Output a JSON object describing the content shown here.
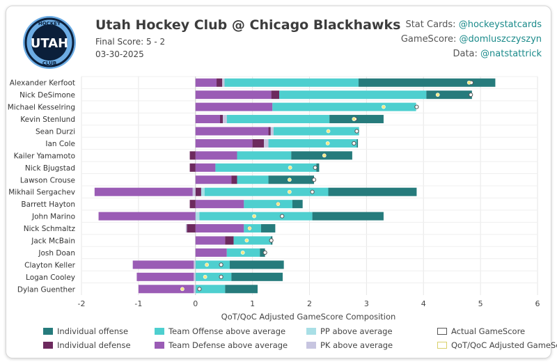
{
  "header": {
    "title": "Utah Hockey Club @ Chicago Blackhawks",
    "final_score": "Final Score: 5 - 2",
    "date": "03-30-2025",
    "logo_text_top": "HOCKEY",
    "logo_text_main": "UTAH",
    "logo_text_bottom": "CLUB"
  },
  "credits": [
    {
      "label": "Stat Cards: ",
      "handle": "@hockeystatcards"
    },
    {
      "label": "GameScore: ",
      "handle": "@domluszczyszyn"
    },
    {
      "label": "Data: ",
      "handle": "@natstattrick"
    }
  ],
  "colors": {
    "individual_offense": "#267b7c",
    "individual_defense": "#6d2a5e",
    "team_offense": "#4ecfcf",
    "team_defense": "#9a5cb5",
    "pp": "#a9dfe6",
    "pk": "#c7c5e0",
    "actual_marker": "#ffffff",
    "adjusted_marker": "#f2ea86"
  },
  "chart_data": {
    "type": "bar",
    "orientation": "horizontal-stacked",
    "xlabel": "QoT/QoC Adjusted GameScore Composition",
    "xlim": [
      -2,
      6
    ],
    "xticks": [
      -2,
      -1,
      0,
      1,
      2,
      3,
      4,
      5,
      6
    ],
    "grid": true,
    "legend_position": "bottom",
    "legend": [
      {
        "key": "individual_offense",
        "label": "Individual offense"
      },
      {
        "key": "team_offense",
        "label": "Team Offense above average"
      },
      {
        "key": "pp",
        "label": "PP above average"
      },
      {
        "key": "actual",
        "label": "Actual GameScore"
      },
      {
        "key": "individual_defense",
        "label": "Individual defense"
      },
      {
        "key": "team_defense",
        "label": "Team Defense above average"
      },
      {
        "key": "pk",
        "label": "PK above average"
      },
      {
        "key": "adjusted",
        "label": "QoT/QoC Adjusted GameScore"
      }
    ],
    "players": [
      {
        "name": "Alexander Kerfoot",
        "team_defense": 0.37,
        "individual_defense": 0.1,
        "pk": 0.04,
        "pp": 0.0,
        "team_offense": 2.35,
        "individual_offense": 2.4,
        "actual": 4.84,
        "adjusted": 4.8
      },
      {
        "name": "Nick DeSimone",
        "team_defense": 1.33,
        "individual_defense": 0.14,
        "pk": 0.0,
        "pp": 0.0,
        "team_offense": 2.58,
        "individual_offense": 0.8,
        "actual": 4.83,
        "adjusted": 4.25
      },
      {
        "name": "Michael Kesselring",
        "team_defense": 1.35,
        "individual_defense": 0.0,
        "pk": 0.0,
        "pp": 0.0,
        "team_offense": 2.52,
        "individual_offense": 0.0,
        "actual": 3.88,
        "adjusted": 3.3
      },
      {
        "name": "Kevin Stenlund",
        "team_defense": 0.43,
        "individual_defense": 0.05,
        "pk": 0.07,
        "pp": 0.0,
        "team_offense": 1.8,
        "individual_offense": 0.95,
        "actual": 2.8,
        "adjusted": 2.78
      },
      {
        "name": "Sean Durzi",
        "team_defense": 1.28,
        "individual_defense": 0.04,
        "pk": 0.05,
        "pp": 0.0,
        "team_offense": 1.5,
        "individual_offense": 0.0,
        "actual": 2.83,
        "adjusted": 2.33
      },
      {
        "name": "Ian Cole",
        "team_defense": 1.0,
        "individual_defense": 0.2,
        "pk": 0.08,
        "pp": 0.0,
        "team_offense": 1.55,
        "individual_offense": 0.02,
        "actual": 2.78,
        "adjusted": 2.32
      },
      {
        "name": "Kailer Yamamoto",
        "team_defense": 0.73,
        "individual_defense": -0.1,
        "pk": 0.0,
        "pp": 0.0,
        "team_offense": 0.95,
        "individual_offense": 1.07,
        "actual": 2.26,
        "adjusted": 2.26
      },
      {
        "name": "Nick Bjugstad",
        "team_defense": 0.35,
        "individual_defense": -0.1,
        "pk": 0.0,
        "pp": 0.0,
        "team_offense": 1.77,
        "individual_offense": 0.05,
        "actual": 2.1,
        "adjusted": 1.66
      },
      {
        "name": "Lawson Crouse",
        "team_defense": 0.63,
        "individual_defense": 0.1,
        "pk": 0.0,
        "pp": 0.0,
        "team_offense": 0.55,
        "individual_offense": 0.8,
        "actual": 2.08,
        "adjusted": 1.65
      },
      {
        "name": "Mikhail Sergachev",
        "team_defense": -1.72,
        "individual_defense": 0.1,
        "pk": -0.05,
        "pp": 0.06,
        "team_offense": 2.17,
        "individual_offense": 1.55,
        "actual": 2.05,
        "adjusted": 1.65
      },
      {
        "name": "Barrett Hayton",
        "team_defense": 0.85,
        "individual_defense": -0.1,
        "pk": 0.0,
        "pp": 0.0,
        "team_offense": 0.85,
        "individual_offense": 0.18,
        "actual": 1.45,
        "adjusted": 1.45
      },
      {
        "name": "John Marino",
        "team_defense": -1.7,
        "individual_defense": 0.0,
        "pk": 0.0,
        "pp": 0.07,
        "team_offense": 1.98,
        "individual_offense": 1.25,
        "actual": 1.52,
        "adjusted": 1.03
      },
      {
        "name": "Nick Schmaltz",
        "team_defense": 0.85,
        "individual_defense": -0.15,
        "pk": -0.02,
        "pp": 0.0,
        "team_offense": 0.3,
        "individual_offense": 0.25,
        "actual": 0.95,
        "adjusted": 0.95
      },
      {
        "name": "Jack McBain",
        "team_defense": 0.52,
        "individual_defense": 0.15,
        "pk": 0.0,
        "pp": 0.0,
        "team_offense": 0.65,
        "individual_offense": 0.03,
        "actual": 1.33,
        "adjusted": 0.9
      },
      {
        "name": "Josh Doan",
        "team_defense": 0.55,
        "individual_defense": 0.0,
        "pk": 0.0,
        "pp": 0.0,
        "team_offense": 0.58,
        "individual_offense": 0.09,
        "actual": 1.22,
        "adjusted": 0.83
      },
      {
        "name": "Clayton Keller",
        "team_defense": -1.07,
        "individual_defense": 0.0,
        "pk": -0.03,
        "pp": 0.0,
        "team_offense": 0.6,
        "individual_offense": 0.95,
        "actual": 0.45,
        "adjusted": 0.2
      },
      {
        "name": "Logan Cooley",
        "team_defense": -1.0,
        "individual_defense": 0.0,
        "pk": -0.03,
        "pp": 0.0,
        "team_offense": 0.63,
        "individual_offense": 0.9,
        "actual": 0.45,
        "adjusted": 0.17
      },
      {
        "name": "Dylan Guenther",
        "team_defense": -0.97,
        "individual_defense": 0.0,
        "pk": -0.03,
        "pp": 0.0,
        "team_offense": 0.52,
        "individual_offense": 0.57,
        "actual": 0.07,
        "adjusted": -0.23
      }
    ]
  }
}
